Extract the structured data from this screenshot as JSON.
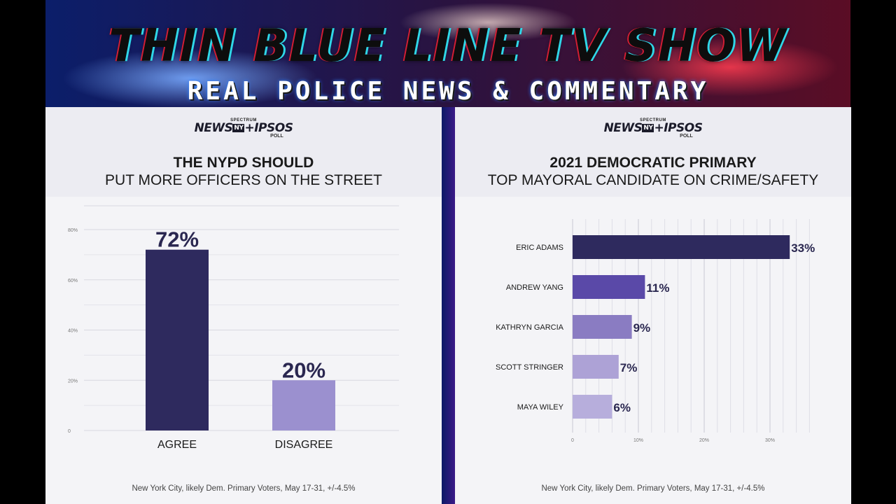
{
  "banner": {
    "title": "THIN BLUE LINE TV SHOW",
    "subtitle": "REAL POLICE NEWS & COMMENTARY"
  },
  "logo": {
    "spectrum": "SPECTRUM",
    "news": "NEWS",
    "ny": "NY",
    "ipsos": "+IPSOS",
    "poll": "POLL"
  },
  "colors": {
    "dark": "#2e2a5e",
    "mid": "#5a49a8",
    "light3": "#8a7cc2",
    "light4": "#ada2d6",
    "light5": "#b7aedc",
    "disagree": "#9b90cf"
  },
  "left_panel": {
    "title": "THE NYPD SHOULD",
    "subtitle": "PUT MORE OFFICERS ON THE STREET",
    "footnote": "New York City, likely Dem. Primary Voters, May 17-31, +/-4.5%"
  },
  "right_panel": {
    "title": "2021 DEMOCRATIC PRIMARY",
    "subtitle": "TOP MAYORAL CANDIDATE ON CRIME/SAFETY",
    "footnote": "New York City, likely Dem. Primary Voters, May 17-31, +/-4.5%"
  },
  "chart_data": [
    {
      "type": "bar",
      "title": "THE NYPD SHOULD PUT MORE OFFICERS ON THE STREET",
      "categories": [
        "AGREE",
        "DISAGREE"
      ],
      "values": [
        72,
        20
      ],
      "data_labels": [
        "72%",
        "20%"
      ],
      "ylim": [
        0,
        80
      ],
      "yticks": [
        0,
        20,
        40,
        60,
        80
      ],
      "ytick_labels": [
        "0",
        "20%",
        "40%",
        "60%",
        "80%"
      ],
      "grid": true
    },
    {
      "type": "bar",
      "orientation": "horizontal",
      "title": "2021 DEMOCRATIC PRIMARY TOP MAYORAL CANDIDATE ON CRIME/SAFETY",
      "categories": [
        "ERIC ADAMS",
        "ANDREW YANG",
        "KATHRYN GARCIA",
        "SCOTT STRINGER",
        "MAYA WILEY"
      ],
      "values": [
        33,
        11,
        9,
        7,
        6
      ],
      "data_labels": [
        "33%",
        "11%",
        "9%",
        "7%",
        "6%"
      ],
      "xlim": [
        0,
        36
      ],
      "xticks": [
        0,
        10,
        20,
        30
      ],
      "xtick_labels": [
        "0",
        "10%",
        "20%",
        "30%"
      ],
      "grid": true
    }
  ]
}
